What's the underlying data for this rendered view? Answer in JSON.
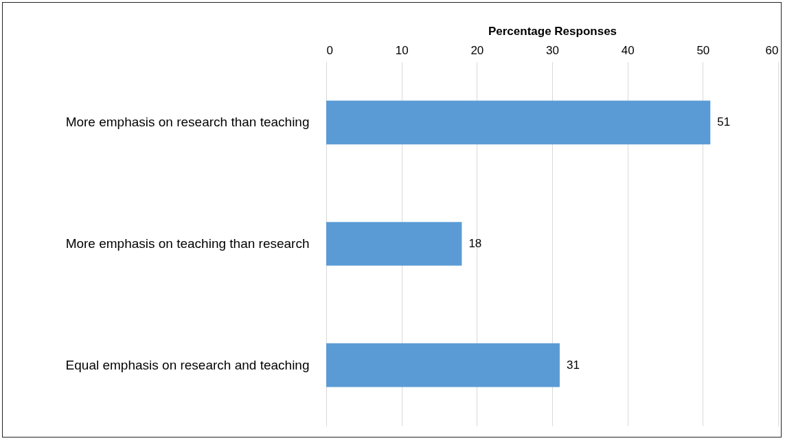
{
  "chart_data": {
    "type": "bar",
    "orientation": "horizontal",
    "xlabel": "Percentage Responses",
    "categories": [
      "More emphasis on research than teaching",
      "More emphasis on teaching than research",
      "Equal emphasis on research and teaching"
    ],
    "values": [
      51,
      18,
      31
    ],
    "color": "#5b9bd5",
    "xlim": [
      0,
      60
    ],
    "xticks": [
      0,
      10,
      20,
      30,
      40,
      50,
      60
    ],
    "grid": "x",
    "data_labels": true
  }
}
